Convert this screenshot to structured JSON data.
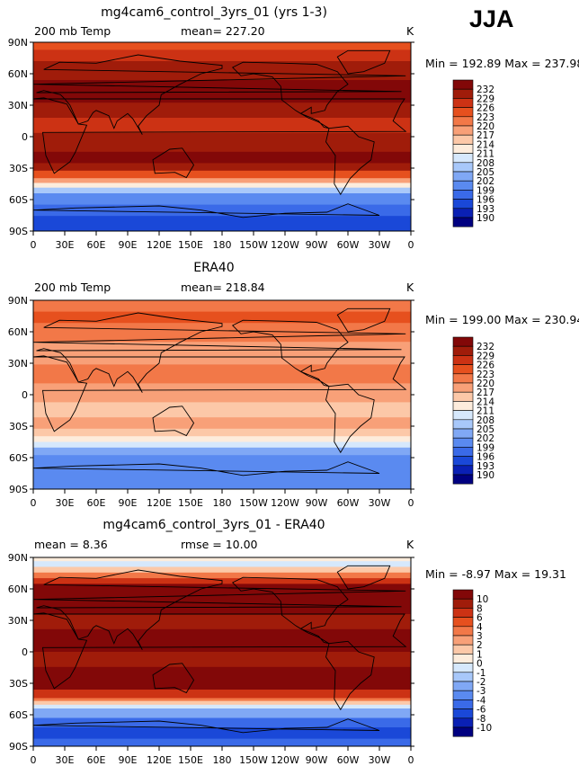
{
  "season": "JJA",
  "panels": [
    {
      "title": "mg4cam6_control_3yrs_01 (yrs 1-3)",
      "left_label": "200 mb Temp",
      "center_label": "mean= 227.20",
      "right_label": "K",
      "minmax": "Min = 192.89 Max = 237.98",
      "legend_labels": [
        "232",
        "229",
        "226",
        "223",
        "220",
        "217",
        "214",
        "211",
        "208",
        "205",
        "202",
        "199",
        "196",
        "193",
        "190"
      ]
    },
    {
      "title": "ERA40",
      "left_label": "200 mb Temp",
      "center_label": "mean= 218.84",
      "right_label": "K",
      "minmax": "Min = 199.00 Max = 230.94",
      "legend_labels": [
        "232",
        "229",
        "226",
        "223",
        "220",
        "217",
        "214",
        "211",
        "208",
        "205",
        "202",
        "199",
        "196",
        "193",
        "190"
      ]
    },
    {
      "title": "mg4cam6_control_3yrs_01 - ERA40",
      "left_label": "mean =   8.36",
      "center_label": "rmse =  10.00",
      "right_label": "K",
      "minmax": "Min =  -8.97 Max =  19.31",
      "legend_labels": [
        "10",
        "8",
        "6",
        "4",
        "3",
        "2",
        "1",
        "0",
        "-1",
        "-2",
        "-3",
        "-4",
        "-6",
        "-8",
        "-10"
      ]
    }
  ],
  "lat_ticks": [
    "90N",
    "60N",
    "30N",
    "0",
    "30S",
    "60S",
    "90S"
  ],
  "lon_ticks": [
    "0",
    "30E",
    "60E",
    "90E",
    "120E",
    "150E",
    "180",
    "150W",
    "120W",
    "90W",
    "60W",
    "30W",
    "0"
  ],
  "colors": {
    "scale": [
      "#000080",
      "#0a20b4",
      "#1a48d8",
      "#3a6ae8",
      "#5a8af0",
      "#80a8f5",
      "#a8c8fa",
      "#d6e8fc",
      "#fdecdc",
      "#fcc8a8",
      "#f8a078",
      "#f27848",
      "#e6501e",
      "#cc3214",
      "#a01c0a",
      "#820808"
    ]
  }
}
